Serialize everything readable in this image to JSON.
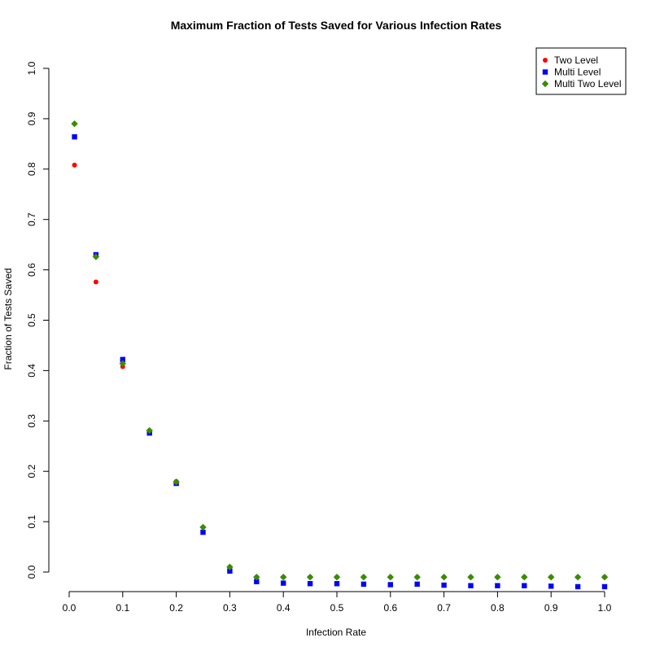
{
  "chart_data": {
    "type": "scatter",
    "title": "Maximum Fraction of Tests Saved for Various Infection Rates",
    "xlabel": "Infection Rate",
    "ylabel": "Fraction of Tests Saved",
    "xlim": [
      0.0,
      1.0
    ],
    "ylim": [
      -0.04,
      1.0
    ],
    "xticks": [
      0.0,
      0.1,
      0.2,
      0.3,
      0.4,
      0.5,
      0.6,
      0.7,
      0.8,
      0.9,
      1.0
    ],
    "xtick_labels": [
      "0.0",
      "0.1",
      "0.2",
      "0.3",
      "0.4",
      "0.5",
      "0.6",
      "0.7",
      "0.8",
      "0.9",
      "1.0"
    ],
    "yticks": [
      0.0,
      0.1,
      0.2,
      0.3,
      0.4,
      0.5,
      0.6,
      0.7,
      0.8,
      0.9,
      1.0
    ],
    "ytick_labels": [
      "0.0",
      "0.1",
      "0.2",
      "0.3",
      "0.4",
      "0.5",
      "0.6",
      "0.7",
      "0.8",
      "0.9",
      "1.0"
    ],
    "grid": false,
    "legend_position": "top-right",
    "x": [
      0.01,
      0.05,
      0.1,
      0.15,
      0.2,
      0.25,
      0.3,
      0.35,
      0.4,
      0.45,
      0.5,
      0.55,
      0.6,
      0.65,
      0.7,
      0.75,
      0.8,
      0.85,
      0.9,
      0.95,
      1.0
    ],
    "series": [
      {
        "name": "Two Level",
        "color": "#ff0000",
        "marker": "circle",
        "values": [
          0.808,
          0.576,
          0.408,
          0.277,
          0.18,
          0.08,
          0.01,
          -0.01,
          -0.01,
          -0.01,
          -0.01,
          -0.01,
          -0.01,
          -0.01,
          -0.01,
          -0.01,
          -0.01,
          -0.01,
          -0.01,
          -0.01,
          -0.01
        ]
      },
      {
        "name": "Multi Level",
        "color": "#0000ff",
        "marker": "square",
        "values": [
          0.864,
          0.63,
          0.422,
          0.276,
          0.176,
          0.079,
          0.002,
          -0.019,
          -0.022,
          -0.023,
          -0.023,
          -0.024,
          -0.025,
          -0.024,
          -0.026,
          -0.027,
          -0.027,
          -0.027,
          -0.028,
          -0.029,
          -0.029
        ]
      },
      {
        "name": "Multi Two Level",
        "color": "#3a8c00",
        "marker": "diamond",
        "values": [
          0.89,
          0.626,
          0.414,
          0.281,
          0.179,
          0.089,
          0.01,
          -0.01,
          -0.01,
          -0.01,
          -0.01,
          -0.01,
          -0.01,
          -0.01,
          -0.01,
          -0.01,
          -0.01,
          -0.01,
          -0.01,
          -0.01,
          -0.01
        ]
      }
    ]
  }
}
